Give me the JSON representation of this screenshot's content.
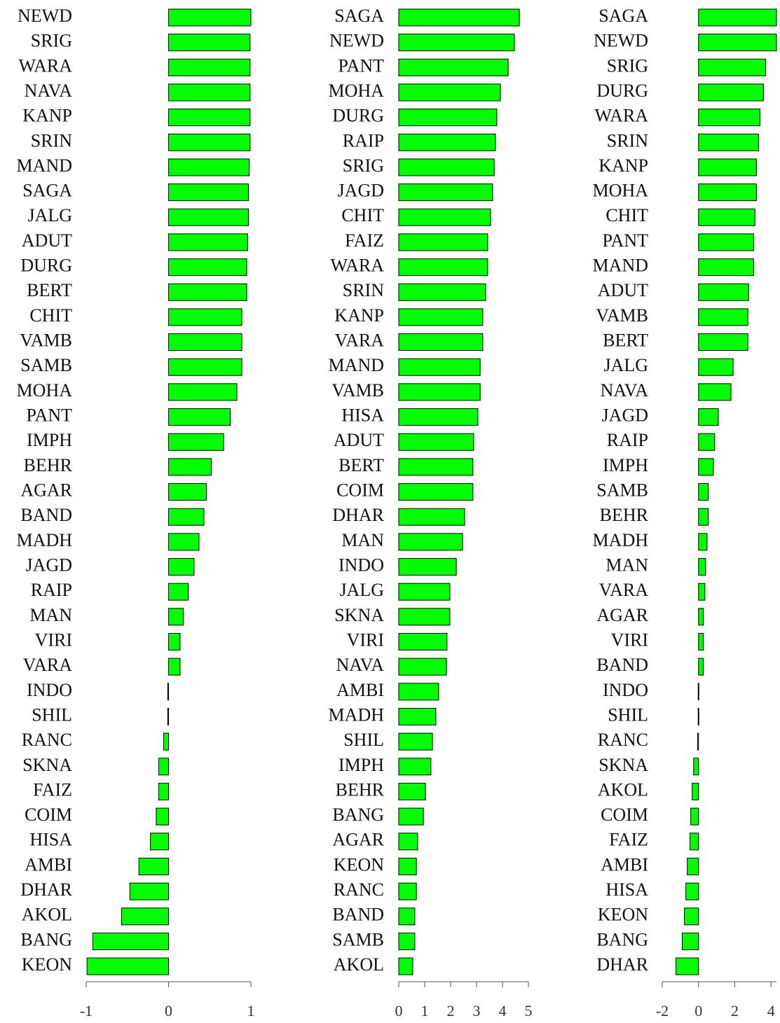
{
  "chart_data": [
    {
      "type": "bar",
      "orientation": "horizontal",
      "color": "#00ff00",
      "categories": [
        "NEWD",
        "SRIG",
        "WARA",
        "NAVA",
        "KANP",
        "SRIN",
        "MAND",
        "SAGA",
        "JALG",
        "ADUT",
        "DURG",
        "BERT",
        "CHIT",
        "VAMB",
        "SAMB",
        "MOHA",
        "PANT",
        "IMPH",
        "BEHR",
        "AGAR",
        "BAND",
        "MADH",
        "JAGD",
        "RAIP",
        "MAN",
        "VIRI",
        "VARA",
        "INDO",
        "SHIL",
        "RANC",
        "SKNA",
        "FAIZ",
        "COIM",
        "HISA",
        "AMBI",
        "DHAR",
        "AKOL",
        "BANG",
        "KEON"
      ],
      "values": [
        1.0,
        0.99,
        0.99,
        0.99,
        0.99,
        0.99,
        0.98,
        0.97,
        0.97,
        0.96,
        0.95,
        0.95,
        0.89,
        0.89,
        0.89,
        0.83,
        0.75,
        0.67,
        0.52,
        0.46,
        0.43,
        0.37,
        0.31,
        0.24,
        0.18,
        0.14,
        0.14,
        -0.01,
        -0.01,
        -0.06,
        -0.12,
        -0.12,
        -0.15,
        -0.22,
        -0.36,
        -0.47,
        -0.57,
        -0.92,
        -0.99
      ],
      "xlim": [
        -1,
        1
      ],
      "xticks": [
        -1,
        0,
        1
      ]
    },
    {
      "type": "bar",
      "orientation": "horizontal",
      "color": "#00ff00",
      "categories": [
        "SAGA",
        "NEWD",
        "PANT",
        "MOHA",
        "DURG",
        "RAIP",
        "SRIG",
        "JAGD",
        "CHIT",
        "FAIZ",
        "WARA",
        "SRIN",
        "KANP",
        "VARA",
        "MAND",
        "VAMB",
        "HISA",
        "ADUT",
        "BERT",
        "COIM",
        "DHAR",
        "MAN",
        "INDO",
        "JALG",
        "SKNA",
        "VIRI",
        "NAVA",
        "AMBI",
        "MADH",
        "SHIL",
        "IMPH",
        "BEHR",
        "BANG",
        "AGAR",
        "KEON",
        "RANC",
        "BAND",
        "SAMB",
        "AKOL"
      ],
      "values": [
        4.65,
        4.46,
        4.22,
        3.92,
        3.78,
        3.73,
        3.68,
        3.62,
        3.54,
        3.43,
        3.43,
        3.35,
        3.24,
        3.24,
        3.14,
        3.14,
        3.05,
        2.89,
        2.86,
        2.86,
        2.54,
        2.46,
        2.22,
        1.97,
        1.97,
        1.86,
        1.84,
        1.54,
        1.43,
        1.3,
        1.24,
        1.03,
        0.95,
        0.73,
        0.68,
        0.68,
        0.62,
        0.62,
        0.54
      ],
      "xlim": [
        0,
        5
      ],
      "xticks": [
        0,
        1,
        2,
        3,
        4,
        5
      ]
    },
    {
      "type": "bar",
      "orientation": "horizontal",
      "color": "#00ff00",
      "categories": [
        "SAGA",
        "NEWD",
        "SRIG",
        "DURG",
        "WARA",
        "SRIN",
        "KANP",
        "MOHA",
        "CHIT",
        "PANT",
        "MAND",
        "ADUT",
        "VAMB",
        "BERT",
        "JALG",
        "NAVA",
        "JAGD",
        "RAIP",
        "IMPH",
        "SAMB",
        "BEHR",
        "MADH",
        "MAN",
        "VARA",
        "AGAR",
        "VIRI",
        "BAND",
        "INDO",
        "SHIL",
        "RANC",
        "SKNA",
        "AKOL",
        "COIM",
        "FAIZ",
        "AMBI",
        "HISA",
        "KEON",
        "BANG",
        "DHAR"
      ],
      "values": [
        4.3,
        4.3,
        3.7,
        3.58,
        3.39,
        3.31,
        3.19,
        3.19,
        3.11,
        3.04,
        3.04,
        2.76,
        2.72,
        2.72,
        1.91,
        1.79,
        1.09,
        0.89,
        0.82,
        0.54,
        0.54,
        0.47,
        0.39,
        0.35,
        0.27,
        0.27,
        0.27,
        -0.02,
        -0.02,
        -0.05,
        -0.27,
        -0.35,
        -0.43,
        -0.47,
        -0.62,
        -0.7,
        -0.78,
        -0.9,
        -1.25
      ],
      "xlim": [
        -2,
        4.3
      ],
      "xticks": [
        -2,
        0,
        2,
        4
      ]
    }
  ]
}
